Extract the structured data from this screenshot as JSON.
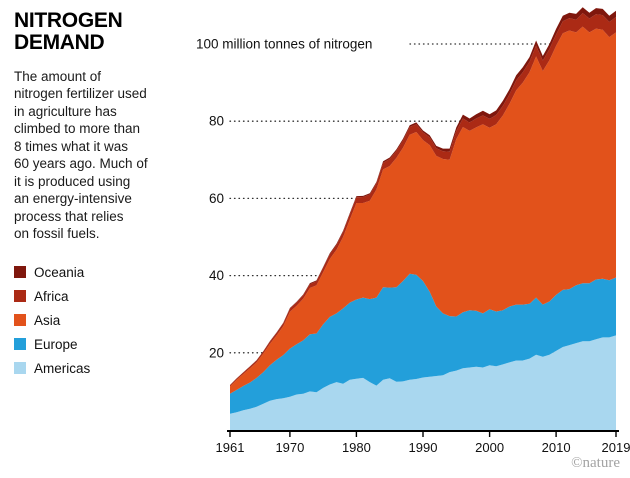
{
  "header": {
    "title_line1": "NITROGEN",
    "title_line2": "DEMAND",
    "description": "The amount of\nnitrogen fertilizer used\nin agriculture has\nclimbed to more than\n8 times what it was\n60 years ago. Much of\nit is produced using\nan energy-intensive\nprocess that relies\non fossil fuels."
  },
  "legend": {
    "items": [
      {
        "label": "Oceania",
        "color": "#7f170d"
      },
      {
        "label": "Africa",
        "color": "#ab2a15"
      },
      {
        "label": "Asia",
        "color": "#e2521b"
      },
      {
        "label": "Europe",
        "color": "#239fda"
      },
      {
        "label": "Americas",
        "color": "#a9d7ef"
      }
    ]
  },
  "footer": {
    "credit": "©nature"
  },
  "chart_data": {
    "type": "area",
    "stacked": true,
    "title": "Nitrogen demand",
    "unit_label": "100 million tonnes of nitrogen",
    "ylabel": "million tonnes of nitrogen",
    "xlim": [
      1961,
      2019
    ],
    "ylim": [
      0,
      110
    ],
    "y_ticks": [
      20,
      40,
      60,
      80,
      100
    ],
    "x_ticks": [
      1961,
      1970,
      1980,
      1990,
      2000,
      2010,
      2019
    ],
    "grid": "dotted horizontal",
    "legend_position": "left",
    "x": [
      1961,
      1962,
      1963,
      1964,
      1965,
      1966,
      1967,
      1968,
      1969,
      1970,
      1971,
      1972,
      1973,
      1974,
      1975,
      1976,
      1977,
      1978,
      1979,
      1980,
      1981,
      1982,
      1983,
      1984,
      1985,
      1986,
      1987,
      1988,
      1989,
      1990,
      1991,
      1992,
      1993,
      1994,
      1995,
      1996,
      1997,
      1998,
      1999,
      2000,
      2001,
      2002,
      2003,
      2004,
      2005,
      2006,
      2007,
      2008,
      2009,
      2010,
      2011,
      2012,
      2013,
      2014,
      2015,
      2016,
      2017,
      2018,
      2019
    ],
    "series": [
      {
        "name": "Americas",
        "color": "#a9d7ef",
        "values": [
          4.2,
          4.6,
          5.1,
          5.5,
          6.0,
          6.8,
          7.6,
          8.0,
          8.2,
          8.6,
          9.2,
          9.4,
          10.0,
          9.8,
          10.9,
          11.8,
          12.4,
          12.0,
          13.0,
          13.3,
          13.5,
          12.4,
          11.5,
          13.0,
          13.4,
          12.5,
          12.6,
          13.0,
          13.2,
          13.6,
          13.8,
          14.0,
          14.2,
          15.0,
          15.4,
          16.0,
          16.2,
          16.4,
          16.2,
          16.8,
          16.5,
          17.0,
          17.5,
          18.0,
          18.0,
          18.5,
          19.5,
          19.0,
          19.5,
          20.5,
          21.5,
          22.0,
          22.5,
          23.0,
          23.0,
          23.5,
          24.0,
          24.0,
          24.5
        ]
      },
      {
        "name": "Europe",
        "color": "#239fda",
        "values": [
          5.2,
          5.8,
          6.3,
          6.8,
          7.5,
          8.2,
          9.2,
          10.2,
          11.2,
          12.5,
          13.0,
          13.8,
          14.8,
          15.2,
          16.5,
          17.5,
          17.8,
          19.5,
          20.0,
          20.5,
          20.8,
          21.5,
          22.8,
          24.0,
          23.5,
          24.5,
          26.0,
          27.5,
          27.0,
          25.0,
          22.0,
          18.0,
          16.0,
          14.5,
          14.0,
          14.5,
          14.8,
          14.5,
          14.0,
          14.5,
          14.2,
          14.0,
          14.5,
          14.5,
          14.5,
          14.2,
          14.8,
          13.5,
          13.8,
          14.5,
          14.8,
          14.5,
          15.0,
          15.0,
          15.0,
          15.5,
          15.2,
          14.8,
          15.0
        ]
      },
      {
        "name": "Asia",
        "color": "#e2521b",
        "values": [
          1.9,
          2.6,
          3.1,
          3.7,
          4.0,
          4.8,
          5.5,
          6.3,
          7.5,
          9.5,
          10.0,
          10.8,
          12.0,
          12.5,
          13.5,
          15.0,
          16.5,
          18.5,
          21.5,
          25.0,
          24.5,
          25.5,
          28.0,
          30.5,
          31.5,
          33.5,
          34.5,
          36.0,
          37.0,
          36.5,
          38.0,
          39.0,
          40.0,
          40.5,
          46.0,
          48.0,
          46.5,
          47.5,
          49.0,
          47.0,
          48.5,
          50.5,
          52.5,
          55.5,
          57.5,
          60.0,
          62.5,
          60.5,
          62.5,
          64.5,
          66.5,
          67.0,
          65.5,
          66.5,
          65.0,
          65.0,
          64.5,
          63.0,
          63.5
        ]
      },
      {
        "name": "Africa",
        "color": "#ab2a15",
        "values": [
          0.3,
          0.35,
          0.4,
          0.45,
          0.5,
          0.55,
          0.6,
          0.65,
          0.7,
          0.8,
          0.85,
          0.9,
          1.0,
          1.0,
          1.1,
          1.2,
          1.25,
          1.3,
          1.4,
          1.5,
          1.55,
          1.6,
          1.6,
          1.7,
          1.8,
          1.8,
          1.9,
          2.0,
          2.0,
          2.0,
          2.0,
          2.0,
          2.0,
          2.1,
          2.1,
          2.2,
          2.2,
          2.3,
          2.3,
          2.3,
          2.4,
          2.5,
          2.5,
          2.6,
          2.7,
          2.7,
          2.8,
          2.7,
          2.9,
          3.0,
          3.1,
          3.2,
          3.3,
          3.5,
          3.6,
          3.7,
          3.8,
          3.9,
          4.0
        ]
      },
      {
        "name": "Oceania",
        "color": "#7f170d",
        "values": [
          0.05,
          0.06,
          0.07,
          0.08,
          0.1,
          0.1,
          0.12,
          0.13,
          0.15,
          0.2,
          0.2,
          0.2,
          0.25,
          0.25,
          0.25,
          0.3,
          0.3,
          0.3,
          0.3,
          0.3,
          0.3,
          0.35,
          0.35,
          0.4,
          0.4,
          0.4,
          0.45,
          0.45,
          0.5,
          0.5,
          0.55,
          0.6,
          0.7,
          0.8,
          0.9,
          1.0,
          1.0,
          1.1,
          1.2,
          1.2,
          1.2,
          1.3,
          1.3,
          1.3,
          1.3,
          1.2,
          1.3,
          1.2,
          1.3,
          1.4,
          1.4,
          1.4,
          1.5,
          1.5,
          1.5,
          1.6,
          1.6,
          1.6,
          1.6
        ]
      }
    ]
  }
}
